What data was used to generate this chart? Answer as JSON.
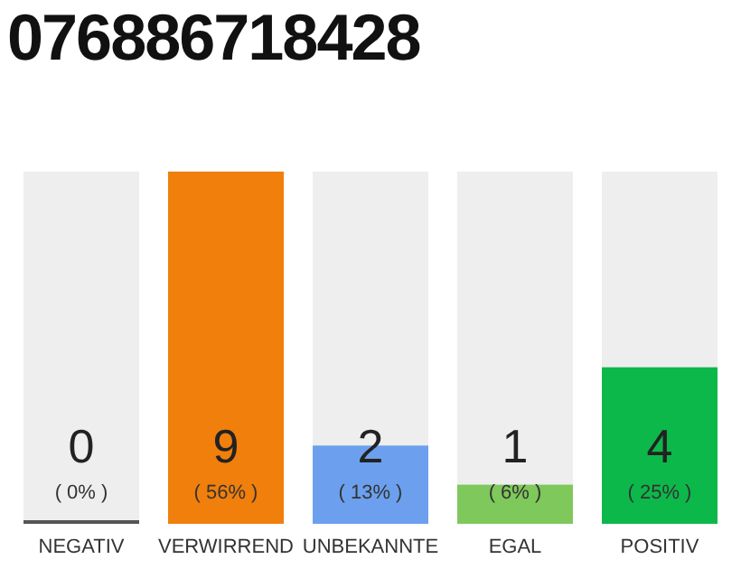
{
  "chart_data": {
    "type": "bar",
    "title": "076886718428",
    "categories": [
      "NEGATIV",
      "VERWIRREND",
      "UNBEKANNTE",
      "EGAL",
      "POSITIV"
    ],
    "values": [
      0,
      9,
      2,
      1,
      4
    ],
    "colors": [
      "#555555",
      "#f07f0c",
      "#6ca0ee",
      "#7ec85c",
      "#0db84a"
    ],
    "value_labels": [
      "0\n( 0% )",
      "9\n( 56% )",
      "2\n( 13% )",
      "1\n( 6% )",
      "4\n( 25% )"
    ],
    "grid": false,
    "legend": false
  }
}
